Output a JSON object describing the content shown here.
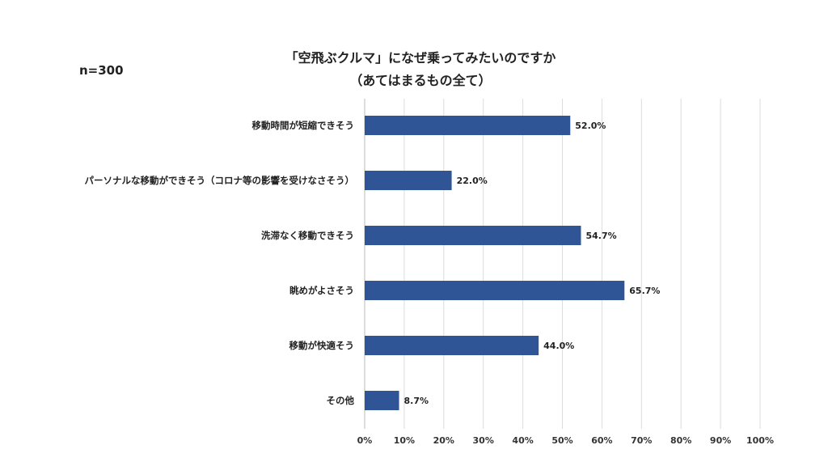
{
  "chart_data": {
    "type": "bar",
    "orientation": "horizontal",
    "title": "「空飛ぶクルマ」になぜ乗ってみたいのですか",
    "subtitle": "（あてはまるもの全て）",
    "annotation": "n=300",
    "categories": [
      "移動時間が短縮できそう",
      "パーソナルな移動ができそう（コロナ等の影響を受けなさそう）",
      "洗滞なく移動できそう",
      "眺めがよさそう",
      "移動が快適そう",
      "その他"
    ],
    "values": [
      52.0,
      22.0,
      54.7,
      65.7,
      44.0,
      8.7
    ],
    "data_labels": [
      "52.0%",
      "22.0%",
      "54.7%",
      "65.7%",
      "44.0%",
      "8.7%"
    ],
    "xlim": [
      0,
      100
    ],
    "xticks": [
      "0%",
      "10%",
      "20%",
      "30%",
      "40%",
      "50%",
      "60%",
      "70%",
      "80%",
      "90%",
      "100%"
    ],
    "grid": true,
    "bar_color": "#2F5597"
  }
}
